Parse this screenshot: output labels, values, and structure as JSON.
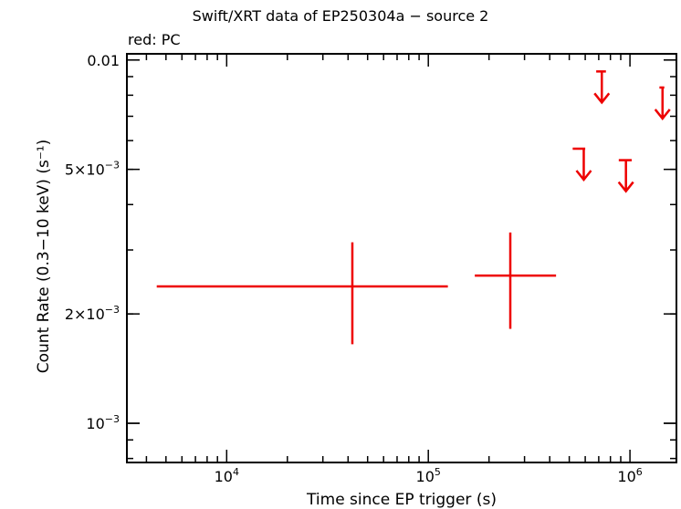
{
  "chart_data": {
    "type": "scatter",
    "title": "Swift/XRT data of EP250304a − source 2",
    "subtitle": "red: PC",
    "xlabel": "Time since EP trigger (s)",
    "ylabel": "Count Rate (0.3−10 keV) (s⁻¹)",
    "xscale": "log",
    "yscale": "log",
    "xlim": [
      3200,
      1700000
    ],
    "ylim": [
      0.00078,
      0.0104
    ],
    "x_ticks": [
      {
        "value": 10000,
        "base": "10",
        "exp": "4"
      },
      {
        "value": 100000,
        "base": "10",
        "exp": "5"
      },
      {
        "value": 1000000,
        "base": "10",
        "exp": "6"
      }
    ],
    "y_ticks": [
      {
        "value": 0.01,
        "label": "0.01",
        "mant": "",
        "exp": ""
      },
      {
        "value": 0.005,
        "label": "",
        "mant": "5×10",
        "exp": "−3"
      },
      {
        "value": 0.002,
        "label": "",
        "mant": "2×10",
        "exp": "−3"
      },
      {
        "value": 0.001,
        "label": "",
        "mant": "10",
        "exp": "−3"
      }
    ],
    "series": [
      {
        "color": "#ee0000",
        "points": [
          {
            "x": 42000,
            "xlo": 4500,
            "xhi": 125000,
            "y": 0.00238,
            "ylo": 0.00165,
            "yhi": 0.00315
          },
          {
            "x": 255000,
            "xlo": 170000,
            "xhi": 430000,
            "y": 0.00255,
            "ylo": 0.00182,
            "yhi": 0.00335
          }
        ],
        "upper_limits": [
          {
            "x": 590000,
            "xlo": 520000,
            "xhi": 600000,
            "y": 0.0057
          },
          {
            "x": 725000,
            "xlo": 680000,
            "xhi": 760000,
            "y": 0.0093
          },
          {
            "x": 955000,
            "xlo": 880000,
            "xhi": 1020000,
            "y": 0.0053
          },
          {
            "x": 1450000,
            "xlo": 1400000,
            "xhi": 1480000,
            "y": 0.0084
          }
        ]
      }
    ]
  }
}
